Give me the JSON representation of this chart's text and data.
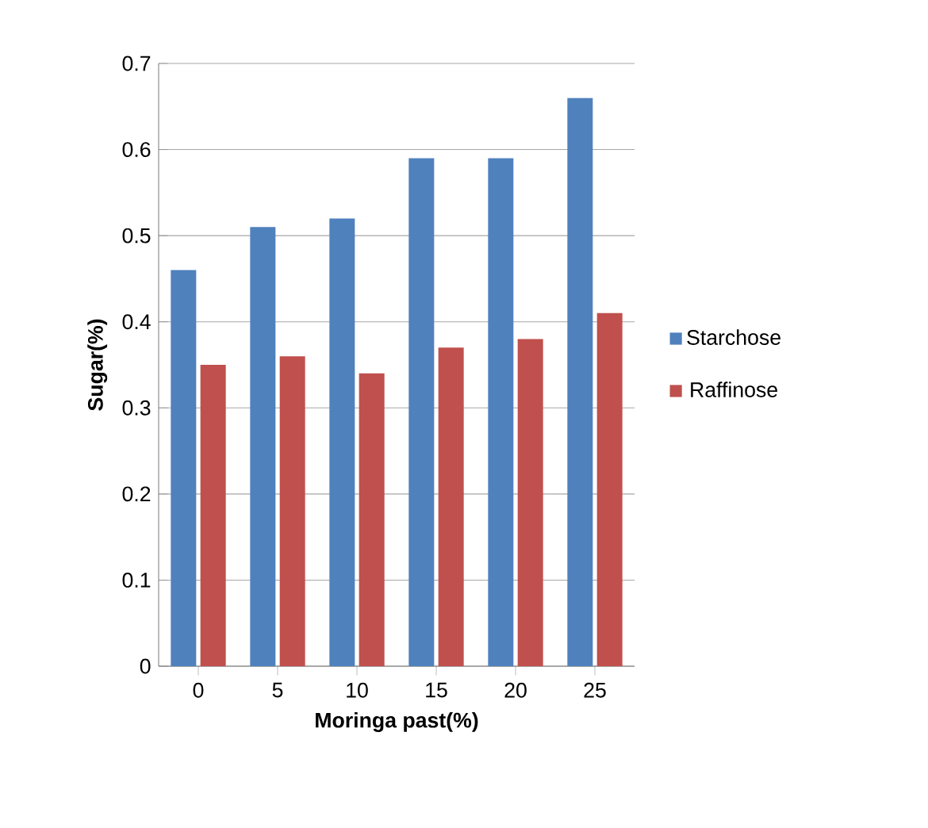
{
  "chart_data": {
    "type": "bar",
    "xlabel": "Moringa past(%)",
    "ylabel": "Sugar(%)",
    "categories": [
      "0",
      "5",
      "10",
      "15",
      "20",
      "25"
    ],
    "series": [
      {
        "name": "Starchose",
        "color": "#4f81bd",
        "values": [
          0.46,
          0.51,
          0.52,
          0.59,
          0.59,
          0.66
        ]
      },
      {
        "name": "Raffinose",
        "color": "#c0504d",
        "values": [
          0.35,
          0.36,
          0.34,
          0.37,
          0.38,
          0.41
        ]
      }
    ],
    "ylim": [
      0,
      0.7
    ],
    "yticks": [
      0,
      0.1,
      0.2,
      0.3,
      0.4,
      0.5,
      0.6,
      0.7
    ],
    "grid": "y",
    "legend": "right"
  }
}
